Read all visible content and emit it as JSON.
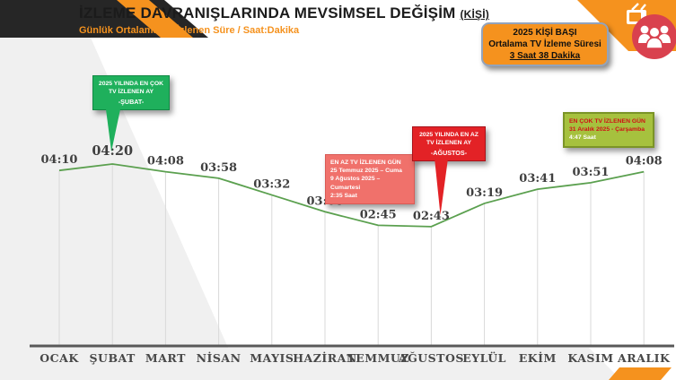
{
  "header": {
    "title": "İZLEME DAVRANIŞLARINDA MEVSİMSEL DEĞİŞİM",
    "title_suffix": "(KİŞİ)",
    "subtitle": "Günlük Ortalama TV İzlenen Süre / Saat:Dakika"
  },
  "badge": {
    "line1": "2025 KİŞİ BAŞI",
    "line2": "Ortalama TV İzleme Süresi",
    "line3": "3 Saat 38 Dakika"
  },
  "callouts": {
    "max_month": {
      "text": "2025 YILINDA EN ÇOK TV İZLENEN AY",
      "month": "-ŞUBAT-",
      "color": "#1FB05C"
    },
    "min_month": {
      "text": "2025 YILINDA EN AZ TV İZLENEN AY",
      "month": "-AĞUSTOS-",
      "color": "#E32226"
    },
    "min_day": {
      "title": "EN AZ TV İZLENEN GÜN",
      "line1": "25 Temmuz 2025 – Cuma",
      "line2": "9 Ağustos 2025 –Cumartesi",
      "line3": "2:35 Saat",
      "color": "#F0716B"
    },
    "max_day": {
      "title": "EN ÇOK TV İZLENEN GÜN",
      "line1": "31 Aralık 2025 - Çarşamba",
      "line2": "4:47 Saat",
      "color": "#A6C13E"
    }
  },
  "corner_graphic": {
    "people_icon": "people-group-icon",
    "tv_icon": "tv-icon"
  },
  "colors": {
    "accent_orange": "#F5921E",
    "dark_banner": "#262626",
    "line_green": "#5BA04F",
    "axis_gray": "#595959",
    "icon_circle_red": "#D9414E"
  },
  "chart_data": {
    "type": "line",
    "title": "Günlük Ortalama TV İzlenen Süre (Saat:Dakika)",
    "categories": [
      "OCAK",
      "ŞUBAT",
      "MART",
      "NİSAN",
      "MAYIS",
      "HAZİRAN",
      "TEMMUZ",
      "AĞUSTOS",
      "EYLÜL",
      "EKİM",
      "KASIM",
      "ARALIK"
    ],
    "values": [
      "04:10",
      "04:20",
      "04:08",
      "03:58",
      "03:32",
      "03:06",
      "02:45",
      "02:43",
      "03:19",
      "03:41",
      "03:51",
      "04:08"
    ],
    "values_minutes": [
      250,
      260,
      248,
      238,
      212,
      186,
      165,
      163,
      199,
      221,
      231,
      248
    ],
    "max_index": 1,
    "min_index": 7,
    "xlabel": "",
    "ylabel": "Saat:Dakika",
    "ylim_minutes": [
      150,
      270
    ],
    "grid": false,
    "legend": false,
    "line_color": "#5BA04F",
    "drop_line_color": "#D9D9D9",
    "axis_color": "#595959",
    "label_color": "#3F3F3F"
  }
}
